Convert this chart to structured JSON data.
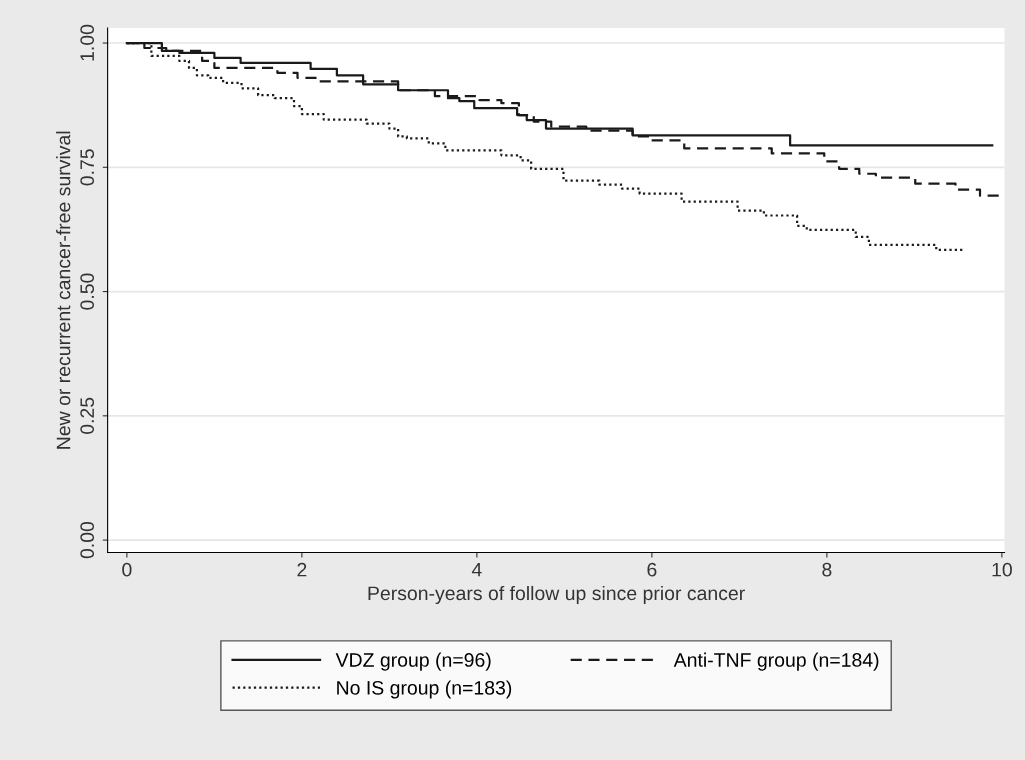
{
  "chart_data": {
    "type": "step",
    "xlabel": "Person-years of follow up since prior cancer",
    "ylabel": "New or recurrent cancer-free survival",
    "xlim": [
      -0.22,
      10.03
    ],
    "ylim": [
      -0.025,
      1.03
    ],
    "xticks": [
      0,
      2,
      4,
      6,
      8,
      10
    ],
    "yticks": [
      {
        "value": 0,
        "label": "0.00"
      },
      {
        "value": 0.25,
        "label": "0.25"
      },
      {
        "value": 0.5,
        "label": "0.50"
      },
      {
        "value": 0.75,
        "label": "0.75"
      },
      {
        "value": 1,
        "label": "1.00"
      }
    ],
    "grid": "y",
    "legend": "bottom",
    "marker": "none",
    "series": [
      {
        "name": "VDZ group (n=96)",
        "color": "#1a1a1a",
        "line_style": "solid",
        "x": [
          0,
          0.4,
          0.6,
          1.0,
          1.3,
          2.1,
          2.4,
          2.7,
          3.1,
          3.67,
          3.8,
          3.97,
          4.46,
          4.57,
          4.79,
          5.78,
          7.58,
          9.89
        ],
        "values": [
          1.0,
          0.984,
          0.98,
          0.97,
          0.96,
          0.948,
          0.935,
          0.917,
          0.905,
          0.889,
          0.883,
          0.869,
          0.855,
          0.845,
          0.828,
          0.814,
          0.794,
          0.794
        ]
      },
      {
        "name": "Anti-TNF group (n=184)",
        "color": "#1a1a1a",
        "line_style": "dashed",
        "x": [
          0,
          0.2,
          0.45,
          0.86,
          1.0,
          1.72,
          1.95,
          2.2,
          3.1,
          3.52,
          4.03,
          4.28,
          4.48,
          4.65,
          4.85,
          5.25,
          5.78,
          5.97,
          6.37,
          7.37,
          7.97,
          8.14,
          8.37,
          8.56,
          9.01,
          9.47,
          9.75,
          9.97,
          10.0
        ],
        "values": [
          1.0,
          0.99,
          0.984,
          0.964,
          0.95,
          0.94,
          0.93,
          0.923,
          0.905,
          0.893,
          0.885,
          0.879,
          0.855,
          0.842,
          0.832,
          0.824,
          0.812,
          0.804,
          0.788,
          0.778,
          0.762,
          0.747,
          0.737,
          0.729,
          0.717,
          0.705,
          0.693,
          0.687,
          0.687
        ]
      },
      {
        "name": "No IS group (n=183)",
        "color": "#1a1a1a",
        "line_style": "dotted",
        "x": [
          0,
          0.28,
          0.6,
          0.71,
          0.8,
          0.93,
          1.1,
          1.31,
          1.5,
          1.69,
          1.91,
          2.0,
          2.25,
          2.74,
          3.0,
          3.1,
          3.2,
          3.45,
          3.64,
          4.28,
          4.5,
          4.62,
          4.99,
          5.4,
          5.66,
          5.86,
          6.34,
          6.98,
          7.28,
          7.66,
          7.77,
          8.33,
          8.48,
          9.25,
          9.58
        ],
        "values": [
          1.0,
          0.974,
          0.964,
          0.95,
          0.935,
          0.93,
          0.92,
          0.909,
          0.895,
          0.889,
          0.873,
          0.857,
          0.846,
          0.838,
          0.828,
          0.812,
          0.808,
          0.798,
          0.784,
          0.774,
          0.764,
          0.747,
          0.723,
          0.715,
          0.707,
          0.697,
          0.681,
          0.663,
          0.653,
          0.632,
          0.624,
          0.61,
          0.594,
          0.584,
          0.584
        ]
      }
    ]
  }
}
